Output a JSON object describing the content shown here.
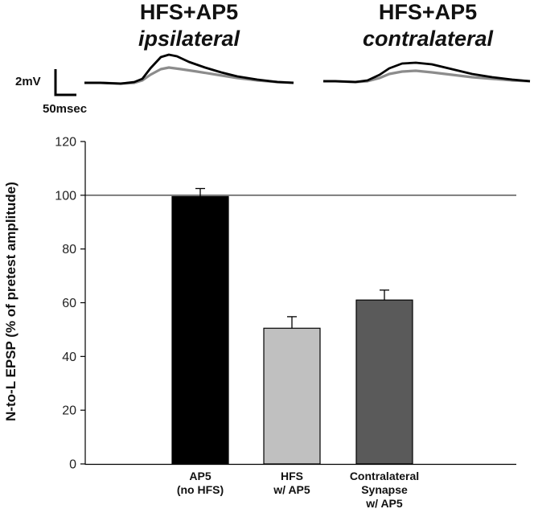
{
  "traces": {
    "left": {
      "title_line1": "HFS+AP5",
      "title_line2": "ipsilateral",
      "black_trace": [
        [
          0,
          0
        ],
        [
          20,
          0
        ],
        [
          45,
          1
        ],
        [
          62,
          -1
        ],
        [
          72,
          -5
        ],
        [
          82,
          -18
        ],
        [
          95,
          -32
        ],
        [
          105,
          -35
        ],
        [
          115,
          -33
        ],
        [
          130,
          -26
        ],
        [
          150,
          -19
        ],
        [
          170,
          -13
        ],
        [
          190,
          -8
        ],
        [
          215,
          -4
        ],
        [
          240,
          -1
        ],
        [
          260,
          0
        ]
      ],
      "gray_trace": [
        [
          0,
          0
        ],
        [
          20,
          0
        ],
        [
          45,
          1
        ],
        [
          62,
          0
        ],
        [
          72,
          -3
        ],
        [
          82,
          -10
        ],
        [
          95,
          -17
        ],
        [
          105,
          -19
        ],
        [
          120,
          -17
        ],
        [
          140,
          -14
        ],
        [
          165,
          -10
        ],
        [
          190,
          -6
        ],
        [
          215,
          -3
        ],
        [
          240,
          -1
        ],
        [
          260,
          0
        ]
      ]
    },
    "right": {
      "title_line1": "HFS+AP5",
      "title_line2": "contralateral",
      "black_trace": [
        [
          0,
          0
        ],
        [
          15,
          0
        ],
        [
          40,
          1
        ],
        [
          55,
          -1
        ],
        [
          70,
          -8
        ],
        [
          82,
          -16
        ],
        [
          98,
          -22
        ],
        [
          115,
          -23
        ],
        [
          135,
          -21
        ],
        [
          160,
          -15
        ],
        [
          185,
          -9
        ],
        [
          210,
          -5
        ],
        [
          235,
          -2
        ],
        [
          257,
          0
        ]
      ],
      "gray_trace": [
        [
          0,
          0
        ],
        [
          15,
          0
        ],
        [
          40,
          1
        ],
        [
          55,
          0
        ],
        [
          70,
          -4
        ],
        [
          82,
          -9
        ],
        [
          98,
          -12
        ],
        [
          115,
          -13
        ],
        [
          135,
          -11
        ],
        [
          160,
          -8
        ],
        [
          185,
          -5
        ],
        [
          210,
          -3
        ],
        [
          235,
          -1
        ],
        [
          257,
          0
        ]
      ]
    },
    "colors": {
      "black": "#000000",
      "gray": "#8c8c8c"
    }
  },
  "scale_bar": {
    "voltage_label": "2mV",
    "time_label": "50msec"
  },
  "chart_data": {
    "type": "bar",
    "categories": [
      [
        "AP5",
        "(no HFS)"
      ],
      [
        "HFS",
        "w/ AP5"
      ],
      [
        "Contralateral",
        "Synapse",
        "w/ AP5"
      ]
    ],
    "values": [
      99.5,
      50.5,
      61
    ],
    "errors": [
      3,
      4.3,
      3.7
    ],
    "colors": [
      "#000000",
      "#c0c0c0",
      "#5a5a5a"
    ],
    "ylabel": "N-to-L EPSP (% of pretest amplitude)",
    "ylim": [
      0,
      120
    ],
    "yticks": [
      0,
      20,
      40,
      60,
      80,
      100,
      120
    ],
    "reference_line": 100,
    "grid": false
  }
}
